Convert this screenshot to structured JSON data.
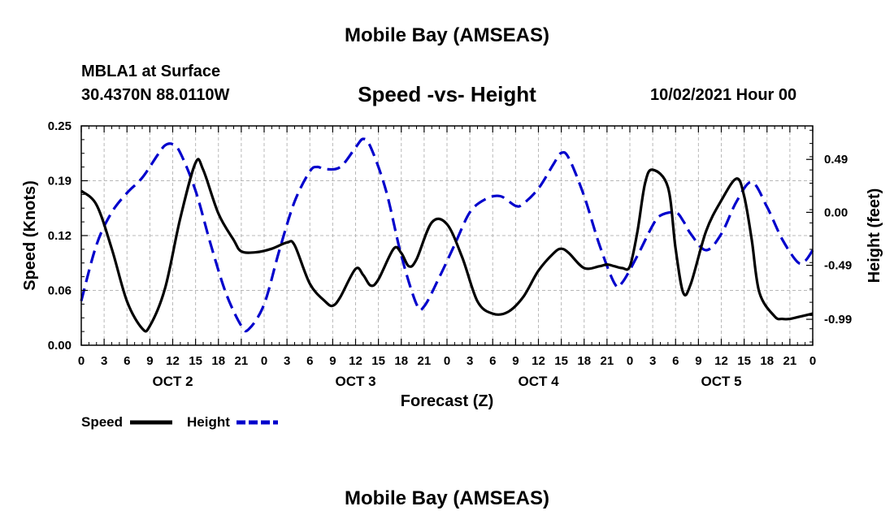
{
  "header": {
    "page_title": "Mobile Bay (AMSEAS)",
    "station_name": "MBLA1 at Surface",
    "station_coords": "30.4370N  88.0110W",
    "timestamp": "10/02/2021 Hour 00",
    "footer_title": "Mobile Bay (AMSEAS)"
  },
  "chart_data": {
    "type": "line",
    "title": "Speed -vs- Height",
    "xlabel": "Forecast (Z)",
    "ylabel_left": "Speed (Knots)",
    "ylabel_right": "Height (feet)",
    "x_range_hours": [
      0,
      96
    ],
    "x_tick_labels": [
      "0",
      "3",
      "6",
      "9",
      "12",
      "15",
      "18",
      "21",
      "0",
      "3",
      "6",
      "9",
      "12",
      "15",
      "18",
      "21",
      "0",
      "3",
      "6",
      "9",
      "12",
      "15",
      "18",
      "21",
      "0",
      "3",
      "6",
      "9",
      "12",
      "15",
      "18",
      "21",
      "0"
    ],
    "day_labels": [
      {
        "label": "OCT 2",
        "hour": 12
      },
      {
        "label": "OCT 3",
        "hour": 36
      },
      {
        "label": "OCT 4",
        "hour": 60
      },
      {
        "label": "OCT 5",
        "hour": 84
      }
    ],
    "y_left": {
      "min": 0,
      "max": 0.25,
      "ticks": [
        "0.00",
        "0.06",
        "0.12",
        "0.19",
        "0.25"
      ]
    },
    "y_right": {
      "min": -1.23,
      "max": 0.8,
      "ticks": [
        {
          "value": 0.49,
          "label": "0.49"
        },
        {
          "value": 0.0,
          "label": "0.00"
        },
        {
          "value": -0.49,
          "label": "-0.49"
        },
        {
          "value": -0.99,
          "label": "-0.99"
        }
      ]
    },
    "grid": true,
    "legend_position": "bottom-left",
    "series": [
      {
        "name": "Speed",
        "axis": "left",
        "color": "#000000",
        "dash": "solid",
        "points": [
          [
            0,
            0.176
          ],
          [
            2,
            0.16
          ],
          [
            4,
            0.11
          ],
          [
            6,
            0.05
          ],
          [
            8,
            0.019
          ],
          [
            9,
            0.022
          ],
          [
            11,
            0.065
          ],
          [
            13,
            0.145
          ],
          [
            15,
            0.208
          ],
          [
            16,
            0.2
          ],
          [
            18,
            0.15
          ],
          [
            20,
            0.12
          ],
          [
            21,
            0.107
          ],
          [
            23,
            0.106
          ],
          [
            25,
            0.11
          ],
          [
            27,
            0.117
          ],
          [
            28,
            0.114
          ],
          [
            30,
            0.07
          ],
          [
            32,
            0.05
          ],
          [
            33,
            0.045
          ],
          [
            34,
            0.055
          ],
          [
            36,
            0.087
          ],
          [
            37,
            0.08
          ],
          [
            38,
            0.068
          ],
          [
            39,
            0.075
          ],
          [
            41,
            0.11
          ],
          [
            42,
            0.105
          ],
          [
            43,
            0.09
          ],
          [
            44,
            0.098
          ],
          [
            46,
            0.14
          ],
          [
            48,
            0.138
          ],
          [
            50,
            0.1
          ],
          [
            52,
            0.05
          ],
          [
            54,
            0.036
          ],
          [
            56,
            0.038
          ],
          [
            58,
            0.055
          ],
          [
            60,
            0.085
          ],
          [
            62,
            0.105
          ],
          [
            63,
            0.11
          ],
          [
            64,
            0.105
          ],
          [
            66,
            0.088
          ],
          [
            68,
            0.09
          ],
          [
            69,
            0.092
          ],
          [
            70,
            0.09
          ],
          [
            71,
            0.088
          ],
          [
            72,
            0.09
          ],
          [
            73,
            0.13
          ],
          [
            74,
            0.185
          ],
          [
            75,
            0.2
          ],
          [
            77,
            0.18
          ],
          [
            78,
            0.11
          ],
          [
            79,
            0.06
          ],
          [
            80,
            0.07
          ],
          [
            82,
            0.13
          ],
          [
            84,
            0.165
          ],
          [
            86,
            0.19
          ],
          [
            87,
            0.17
          ],
          [
            88,
            0.12
          ],
          [
            89,
            0.06
          ],
          [
            91,
            0.033
          ],
          [
            92,
            0.03
          ],
          [
            93,
            0.03
          ],
          [
            94,
            0.032
          ],
          [
            96,
            0.036
          ]
        ]
      },
      {
        "name": "Height",
        "axis": "right",
        "color": "#0000cc",
        "dash": "dashed",
        "points": [
          [
            0,
            -0.82
          ],
          [
            2,
            -0.3
          ],
          [
            4,
            0.0
          ],
          [
            6,
            0.18
          ],
          [
            8,
            0.32
          ],
          [
            10,
            0.53
          ],
          [
            11,
            0.62
          ],
          [
            12,
            0.63
          ],
          [
            13,
            0.55
          ],
          [
            15,
            0.2
          ],
          [
            17,
            -0.3
          ],
          [
            19,
            -0.75
          ],
          [
            21,
            -1.05
          ],
          [
            22,
            -1.08
          ],
          [
            24,
            -0.85
          ],
          [
            26,
            -0.35
          ],
          [
            28,
            0.1
          ],
          [
            30,
            0.38
          ],
          [
            31,
            0.42
          ],
          [
            32,
            0.4
          ],
          [
            34,
            0.42
          ],
          [
            36,
            0.6
          ],
          [
            37,
            0.68
          ],
          [
            38,
            0.6
          ],
          [
            40,
            0.2
          ],
          [
            42,
            -0.4
          ],
          [
            44,
            -0.85
          ],
          [
            45,
            -0.87
          ],
          [
            47,
            -0.6
          ],
          [
            49,
            -0.3
          ],
          [
            51,
            0.0
          ],
          [
            53,
            0.12
          ],
          [
            55,
            0.15
          ],
          [
            57,
            0.06
          ],
          [
            58,
            0.08
          ],
          [
            60,
            0.22
          ],
          [
            62,
            0.45
          ],
          [
            63,
            0.55
          ],
          [
            64,
            0.5
          ],
          [
            66,
            0.15
          ],
          [
            68,
            -0.3
          ],
          [
            70,
            -0.66
          ],
          [
            71,
            -0.65
          ],
          [
            73,
            -0.4
          ],
          [
            75,
            -0.12
          ],
          [
            76,
            -0.03
          ],
          [
            78,
            0.0
          ],
          [
            79,
            -0.08
          ],
          [
            80,
            -0.2
          ],
          [
            82,
            -0.35
          ],
          [
            84,
            -0.2
          ],
          [
            86,
            0.1
          ],
          [
            88,
            0.28
          ],
          [
            90,
            0.05
          ],
          [
            92,
            -0.25
          ],
          [
            94,
            -0.46
          ],
          [
            95,
            -0.45
          ],
          [
            96,
            -0.35
          ]
        ]
      }
    ]
  }
}
